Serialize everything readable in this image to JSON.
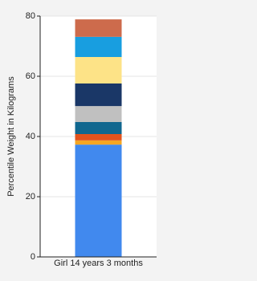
{
  "chart_data": {
    "type": "stacked-bar",
    "y_label": "Percentile Weight in Kilograms",
    "categories": [
      "Girl 14 years 3 months"
    ],
    "series": [
      {
        "color": "#4189ee",
        "values": [
          37.3
        ]
      },
      {
        "color": "#f4a623",
        "values": [
          1.4
        ]
      },
      {
        "color": "#e2531d",
        "values": [
          2.1
        ]
      },
      {
        "color": "#10678f",
        "values": [
          4.0
        ]
      },
      {
        "color": "#c0c0c0",
        "values": [
          5.3
        ]
      },
      {
        "color": "#1a3767",
        "values": [
          7.5
        ]
      },
      {
        "color": "#fde387",
        "values": [
          8.8
        ]
      },
      {
        "color": "#189ee0",
        "values": [
          6.7
        ]
      },
      {
        "color": "#cd6b4c",
        "values": [
          5.8
        ]
      }
    ],
    "ylim": [
      0,
      80
    ],
    "yticks": [
      0,
      20,
      40,
      60,
      80
    ],
    "grid": true
  }
}
